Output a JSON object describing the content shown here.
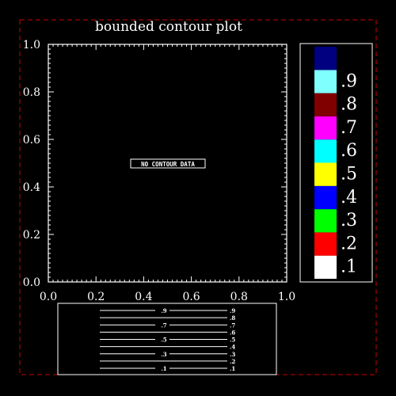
{
  "chart_data": {
    "type": "contour",
    "title": "bounded contour plot",
    "xlim": [
      0.0,
      1.0
    ],
    "ylim": [
      0.0,
      1.0
    ],
    "x_ticks": [
      "0.0",
      "0.2",
      "0.4",
      "0.6",
      "0.8",
      "1.0"
    ],
    "y_ticks": [
      "0.0",
      "0.2",
      "0.4",
      "0.6",
      "0.8",
      "1.0"
    ],
    "message": "NO CONTOUR DATA",
    "levels": [
      ".1",
      ".2",
      ".3",
      ".4",
      ".5",
      ".6",
      ".7",
      ".8",
      ".9"
    ],
    "colorbar_boxes": [
      {
        "value": ".1",
        "color": "#ffffff"
      },
      {
        "value": ".2",
        "color": "#ff0000"
      },
      {
        "value": ".3",
        "color": "#00ff00"
      },
      {
        "value": ".4",
        "color": "#0000ff"
      },
      {
        "value": ".5",
        "color": "#ffff00"
      },
      {
        "value": ".6",
        "color": "#00ffff"
      },
      {
        "value": ".7",
        "color": "#ff00ff"
      },
      {
        "value": ".8",
        "color": "#800000"
      },
      {
        "value": ".9",
        "color": "#80ffff"
      },
      {
        "value": "",
        "color": "#000080"
      }
    ],
    "line_legend": {
      "center_labels": [
        ".1",
        ".3",
        ".5",
        ".7",
        ".9"
      ],
      "right_labels": [
        ".1",
        ".2",
        ".3",
        ".4",
        ".5",
        ".6",
        ".7",
        ".8",
        ".9"
      ]
    },
    "colors": {
      "background": "#000000",
      "foreground": "#ffffff",
      "frame": "#cc0000"
    }
  }
}
